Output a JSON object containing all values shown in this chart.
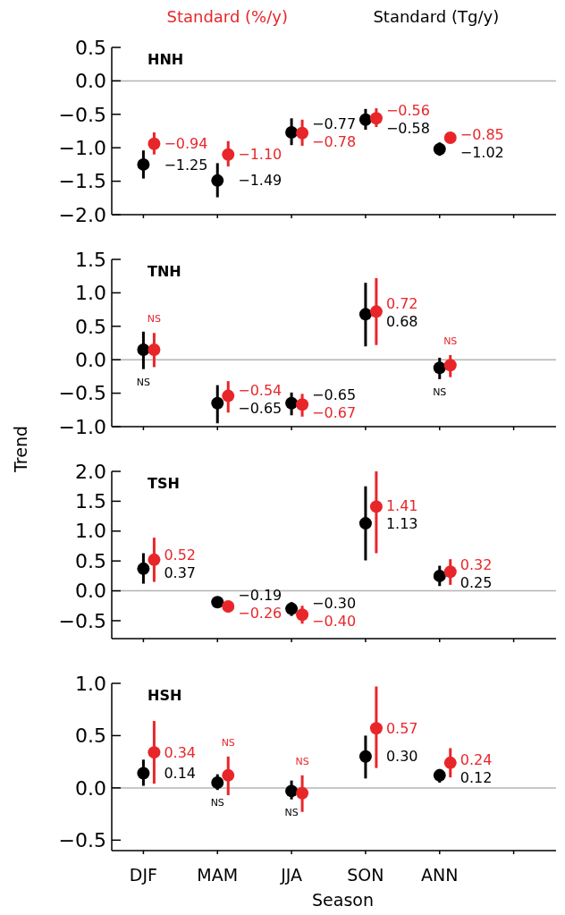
{
  "chart_data": [
    {
      "type": "scatter",
      "title": "HNH",
      "legend": "top",
      "marker": "circle",
      "tick_labels": "y",
      "categories": [
        null,
        null,
        null,
        null,
        null,
        null
      ],
      "ylim": [
        -2.0,
        0.5
      ],
      "yticks": [
        {
          "value": 0.5,
          "label": "0.5"
        },
        {
          "value": 0,
          "label": "0.0"
        },
        {
          "value": -0.5,
          "label": "−0.5"
        },
        {
          "value": -1,
          "label": "−1.0"
        },
        {
          "value": -1.5,
          "label": "−1.5"
        },
        {
          "value": -2,
          "label": "−2.0"
        }
      ],
      "ref_lines": [
        {
          "axis": "y",
          "value": 0,
          "color": "#b4b4b4"
        }
      ],
      "series": [
        {
          "name": "Standard (Tg/y)",
          "color": "#000000",
          "values": [
            -1.25,
            -1.49,
            -0.77,
            -0.58,
            -1.02,
            null
          ],
          "errors": [
            [
              -1.46,
              -1.04
            ],
            [
              -1.74,
              -1.23
            ],
            [
              -0.96,
              -0.56
            ],
            [
              -0.73,
              -0.42
            ],
            [
              -1.12,
              -0.92
            ],
            null
          ],
          "value_labels": [
            "−1.25",
            "−1.49",
            "−0.77",
            "−0.58",
            "−1.02",
            null
          ]
        },
        {
          "name": "Standard (%/y)",
          "color": "#e8262a",
          "values": [
            -0.94,
            -1.1,
            -0.78,
            -0.56,
            -0.85,
            null
          ],
          "errors": [
            [
              -1.1,
              -0.77
            ],
            [
              -1.28,
              -0.9
            ],
            [
              -0.97,
              -0.58
            ],
            [
              -0.69,
              -0.41
            ],
            null,
            null
          ],
          "value_labels": [
            "−0.94",
            "−1.10",
            "−0.78",
            "−0.56",
            "−0.85",
            null
          ]
        }
      ]
    },
    {
      "type": "scatter",
      "title": "TNH",
      "ylabel": "Trend",
      "marker": "circle",
      "tick_labels": "y",
      "categories": [
        null,
        null,
        null,
        null,
        null,
        null
      ],
      "ylim": [
        -1.0,
        1.5
      ],
      "yticks": [
        {
          "value": 1.5,
          "label": "1.5"
        },
        {
          "value": 1,
          "label": "1.0"
        },
        {
          "value": 0.5,
          "label": "0.5"
        },
        {
          "value": 0,
          "label": "0.0"
        },
        {
          "value": -0.5,
          "label": "−0.5"
        },
        {
          "value": -1,
          "label": "−1.0"
        }
      ],
      "ref_lines": [
        {
          "axis": "y",
          "value": 0,
          "color": "#b4b4b4"
        }
      ],
      "series": [
        {
          "color": "#000000",
          "values": [
            0.15,
            -0.65,
            -0.65,
            0.68,
            -0.12,
            null
          ],
          "errors": [
            [
              -0.14,
              0.42
            ],
            [
              -0.95,
              -0.38
            ],
            [
              -0.83,
              -0.49
            ],
            [
              0.2,
              1.15
            ],
            [
              -0.29,
              0.03
            ],
            null
          ],
          "value_labels": [
            "NS",
            "−0.65",
            "−0.65",
            "0.68",
            "NS",
            null
          ]
        },
        {
          "color": "#e8262a",
          "values": [
            0.15,
            -0.54,
            -0.67,
            0.72,
            -0.08,
            null
          ],
          "errors": [
            [
              -0.11,
              0.4
            ],
            [
              -0.79,
              -0.32
            ],
            [
              -0.85,
              -0.51
            ],
            [
              0.22,
              1.22
            ],
            [
              -0.26,
              0.07
            ],
            null
          ],
          "value_labels": [
            "NS",
            "−0.54",
            "−0.67",
            "0.72",
            "NS",
            null
          ]
        }
      ]
    },
    {
      "type": "scatter",
      "title": "TSH",
      "marker": "circle",
      "tick_labels": "y",
      "categories": [
        null,
        null,
        null,
        null,
        null,
        null
      ],
      "ylim": [
        -0.8,
        2.0
      ],
      "yticks": [
        {
          "value": 2,
          "label": "2.0"
        },
        {
          "value": 1.5,
          "label": "1.5"
        },
        {
          "value": 1,
          "label": "1.0"
        },
        {
          "value": 0.5,
          "label": "0.5"
        },
        {
          "value": 0,
          "label": "0.0"
        },
        {
          "value": -0.5,
          "label": "−0.5"
        }
      ],
      "ref_lines": [
        {
          "axis": "y",
          "value": 0,
          "color": "#b4b4b4"
        }
      ],
      "series": [
        {
          "color": "#000000",
          "values": [
            0.37,
            -0.19,
            -0.3,
            1.13,
            0.25,
            null
          ],
          "errors": [
            [
              0.12,
              0.63
            ],
            [
              -0.24,
              -0.14
            ],
            [
              -0.42,
              -0.19
            ],
            [
              0.51,
              1.75
            ],
            [
              0.08,
              0.42
            ],
            null
          ],
          "value_labels": [
            "0.37",
            "−0.19",
            "−0.30",
            "1.13",
            "0.25",
            null
          ]
        },
        {
          "color": "#e8262a",
          "values": [
            0.52,
            -0.26,
            -0.4,
            1.41,
            0.32,
            null
          ],
          "errors": [
            [
              0.15,
              0.89
            ],
            [
              -0.36,
              -0.18
            ],
            [
              -0.55,
              -0.25
            ],
            [
              0.63,
              2.0
            ],
            [
              0.1,
              0.53
            ],
            null
          ],
          "value_labels": [
            "0.52",
            "−0.26",
            "−0.40",
            "1.41",
            "0.32",
            null
          ]
        }
      ]
    },
    {
      "type": "scatter",
      "title": "HSH",
      "xlabel": "Season",
      "marker": "circle",
      "categories": [
        "DJF",
        "MAM",
        "JJA",
        "SON",
        "ANN",
        null
      ],
      "ylim": [
        -0.6,
        1.0
      ],
      "yticks": [
        {
          "value": 1,
          "label": "1.0"
        },
        {
          "value": 0.5,
          "label": "0.5"
        },
        {
          "value": 0,
          "label": "0.0"
        },
        {
          "value": -0.5,
          "label": "−0.5"
        }
      ],
      "ref_lines": [
        {
          "axis": "y",
          "value": 0,
          "color": "#b4b4b4"
        }
      ],
      "series": [
        {
          "color": "#000000",
          "values": [
            0.14,
            0.05,
            -0.03,
            0.3,
            0.12,
            null
          ],
          "errors": [
            [
              0.02,
              0.27
            ],
            [
              -0.02,
              0.13
            ],
            [
              -0.11,
              0.07
            ],
            [
              0.09,
              0.5
            ],
            [
              0.05,
              0.18
            ],
            null
          ],
          "value_labels": [
            "0.14",
            "NS",
            "NS",
            "0.30",
            "0.12",
            null
          ]
        },
        {
          "color": "#e8262a",
          "values": [
            0.34,
            0.12,
            -0.05,
            0.57,
            0.24,
            null
          ],
          "errors": [
            [
              0.04,
              0.64
            ],
            [
              -0.07,
              0.3
            ],
            [
              -0.23,
              0.12
            ],
            [
              0.19,
              0.97
            ],
            [
              0.1,
              0.38
            ],
            null
          ],
          "value_labels": [
            "0.34",
            "NS",
            "NS",
            "0.57",
            "0.24",
            null
          ]
        }
      ]
    }
  ]
}
